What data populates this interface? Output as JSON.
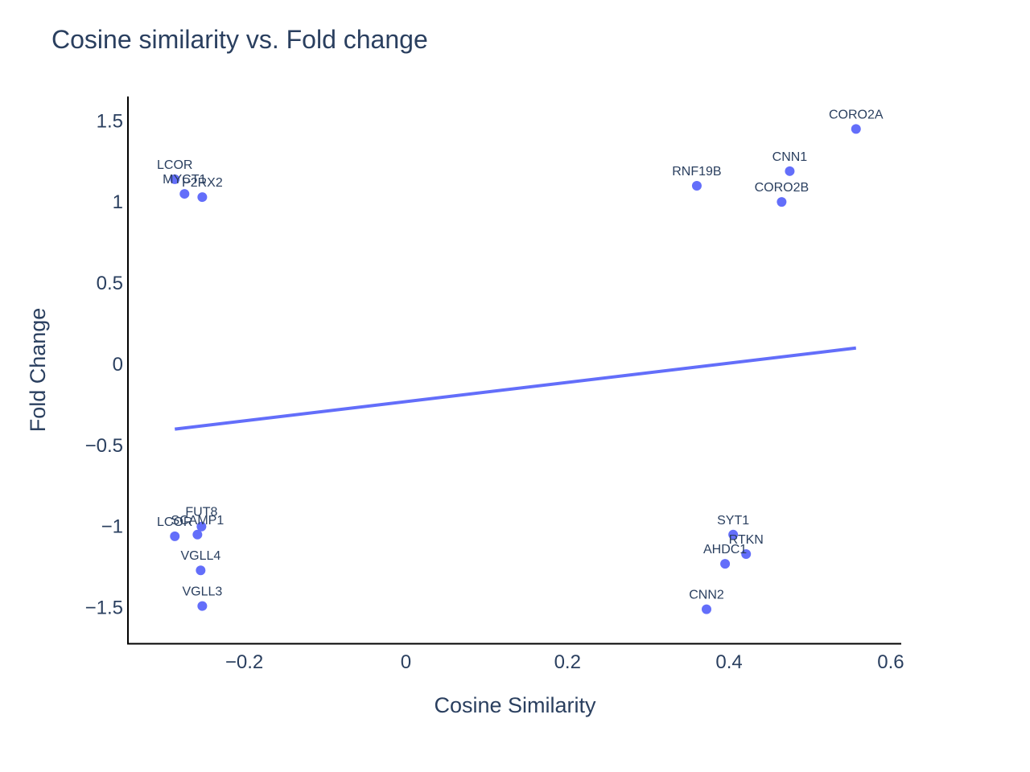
{
  "chart_data": {
    "type": "scatter",
    "title": "Cosine similarity vs. Fold change",
    "xlabel": "Cosine Similarity",
    "ylabel": "Fold Change",
    "xlim": [
      -0.343,
      0.613
    ],
    "ylim": [
      -1.72,
      1.65
    ],
    "x_ticks": [
      -0.2,
      0,
      0.2,
      0.4,
      0.6
    ],
    "x_tick_labels": [
      "−0.2",
      "0",
      "0.2",
      "0.4",
      "0.6"
    ],
    "y_ticks": [
      1.5,
      1,
      0.5,
      0,
      -0.5,
      -1,
      -1.5
    ],
    "y_tick_labels": [
      "1.5",
      "1",
      "0.5",
      "0",
      "−0.5",
      "−1",
      "−1.5"
    ],
    "grid": false,
    "marker_color": "#636efa",
    "points": [
      {
        "label": "CORO2A",
        "x": 0.557,
        "y": 1.45
      },
      {
        "label": "CNN1",
        "x": 0.475,
        "y": 1.19
      },
      {
        "label": "RNF19B",
        "x": 0.36,
        "y": 1.1
      },
      {
        "label": "CORO2B",
        "x": 0.465,
        "y": 1.0
      },
      {
        "label": "LCOR",
        "x": -0.286,
        "y": 1.14
      },
      {
        "label": "MYCT1",
        "x": -0.274,
        "y": 1.05
      },
      {
        "label": "P2RX2",
        "x": -0.252,
        "y": 1.03
      },
      {
        "label": "FUT8",
        "x": -0.253,
        "y": -1.0
      },
      {
        "label": "SCAMP1",
        "x": -0.258,
        "y": -1.05
      },
      {
        "label": "LCOR",
        "x": -0.286,
        "y": -1.06
      },
      {
        "label": "VGLL4",
        "x": -0.254,
        "y": -1.27
      },
      {
        "label": "VGLL3",
        "x": -0.252,
        "y": -1.49
      },
      {
        "label": "SYT1",
        "x": 0.405,
        "y": -1.05
      },
      {
        "label": "RTKN",
        "x": 0.421,
        "y": -1.17
      },
      {
        "label": "AHDC1",
        "x": 0.395,
        "y": -1.23
      },
      {
        "label": "CNN2",
        "x": 0.372,
        "y": -1.51
      }
    ],
    "trendline": {
      "x": [
        -0.286,
        0.557
      ],
      "y": [
        -0.4,
        0.1
      ]
    }
  }
}
